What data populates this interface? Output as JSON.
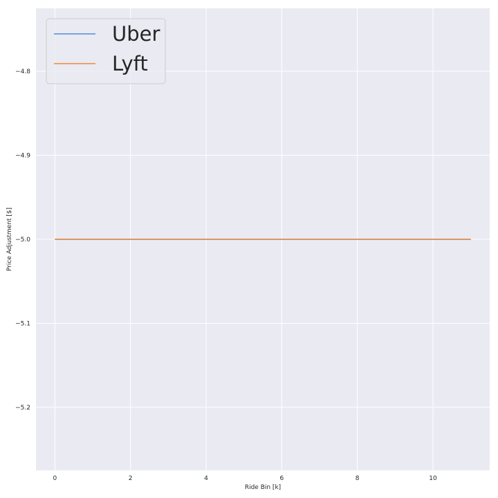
{
  "chart_data": {
    "type": "line",
    "title": "",
    "xlabel": "Ride Bin [k]",
    "ylabel": "Price Adjustment [$]",
    "xlim": [
      -0.5,
      11.5
    ],
    "ylim": [
      -5.275,
      -4.725
    ],
    "x_ticks": [
      0,
      2,
      4,
      6,
      8,
      10
    ],
    "x_tick_labels": [
      "0",
      "2",
      "4",
      "6",
      "8",
      "10"
    ],
    "y_ticks": [
      -4.8,
      -4.9,
      -5.0,
      -5.1,
      -5.2
    ],
    "y_tick_labels": [
      "−4.8",
      "−4.9",
      "−5.0",
      "−5.1",
      "−5.2"
    ],
    "grid": true,
    "legend_position": "top-left",
    "x": [
      0,
      1,
      2,
      3,
      4,
      5,
      6,
      7,
      8,
      9,
      10,
      11
    ],
    "series": [
      {
        "name": "Uber",
        "color": "#4c8ed1",
        "values": [
          -5.0,
          -5.0,
          -5.0,
          -5.0,
          -5.0,
          -5.0,
          -5.0,
          -5.0,
          -5.0,
          -5.0,
          -5.0,
          -5.0
        ]
      },
      {
        "name": "Lyft",
        "color": "#ee8a3a",
        "values": [
          -5.0,
          -5.0,
          -5.0,
          -5.0,
          -5.0,
          -5.0,
          -5.0,
          -5.0,
          -5.0,
          -5.0,
          -5.0,
          -5.0
        ]
      }
    ]
  },
  "colors": {
    "plot_background": "#eaeaf2",
    "grid": "#ffffff",
    "text": "#262626"
  }
}
